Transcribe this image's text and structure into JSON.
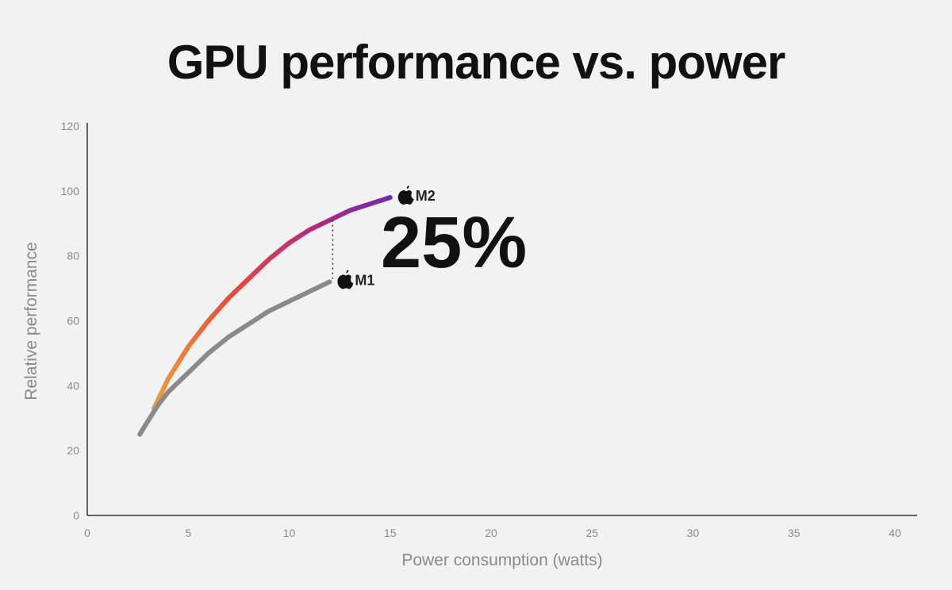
{
  "chart_data": {
    "type": "line",
    "title": "GPU performance vs. power",
    "xlabel": "Power consumption (watts)",
    "ylabel": "Relative performance",
    "xlim": [
      0,
      40
    ],
    "ylim": [
      0,
      120
    ],
    "xticks": [
      0,
      5,
      10,
      15,
      20,
      25,
      30,
      35,
      40
    ],
    "yticks": [
      0,
      20,
      40,
      60,
      80,
      100,
      120
    ],
    "grid": false,
    "series": [
      {
        "name": "M1",
        "color": "#8a8a8e",
        "x": [
          2.6,
          3.0,
          3.5,
          4.0,
          5.0,
          6.0,
          7.0,
          8.0,
          9.0,
          10.0,
          11.0,
          12.0
        ],
        "y": [
          25,
          29,
          34,
          38,
          44,
          50,
          55,
          59,
          63,
          66,
          69,
          72
        ]
      },
      {
        "name": "M2",
        "colors": [
          "#f0a03c",
          "#e84a38",
          "#b82a7a",
          "#6a2ab8"
        ],
        "x": [
          3.3,
          4.0,
          5.0,
          6.0,
          7.0,
          8.0,
          9.0,
          10.0,
          11.0,
          12.0,
          13.0,
          14.0,
          15.0
        ],
        "y": [
          33,
          42,
          52,
          60,
          67,
          73,
          79,
          84,
          88,
          91,
          94,
          96,
          98
        ]
      }
    ],
    "annotations": [
      {
        "text": "25%",
        "x": 12,
        "y_from": 72,
        "y_to": 91
      }
    ]
  }
}
